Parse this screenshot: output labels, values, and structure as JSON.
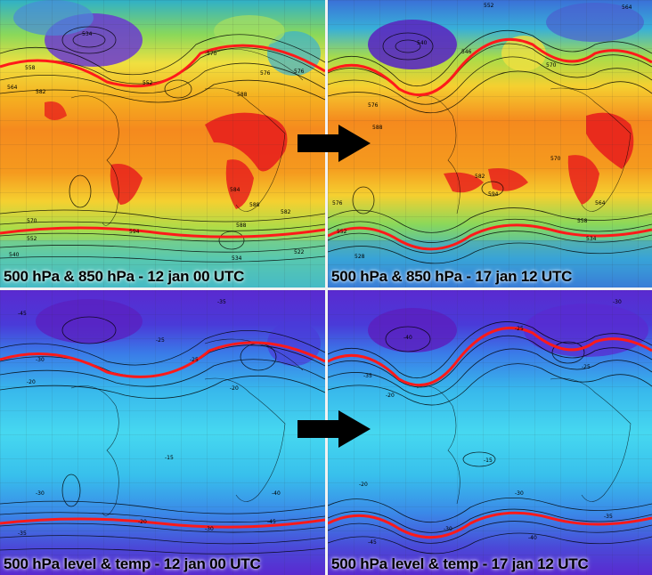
{
  "panels": [
    {
      "id": "tl",
      "caption": "500 hPa & 850 hPa - 12 jan 00 UTC",
      "product": "850 hPa temp + 500 hPa height"
    },
    {
      "id": "tr",
      "caption": "500 hPa & 850 hPa - 17 jan 12 UTC",
      "product": "850 hPa temp + 500 hPa height"
    },
    {
      "id": "bl",
      "caption": "500 hPa level & temp - 12 jan 00 UTC",
      "product": "500 hPa temp + height"
    },
    {
      "id": "br",
      "caption": "500 hPa level & temp - 17 jan 12 UTC",
      "product": "500 hPa temp + height"
    }
  ],
  "arrows": [
    {
      "id": "top-arrow",
      "icon": "right-arrow-icon",
      "color": "#000000"
    },
    {
      "id": "bottom-arrow",
      "icon": "right-arrow-icon",
      "color": "#000000"
    }
  ],
  "contour_labels": {
    "tl": [
      "558",
      "534",
      "552",
      "570",
      "576",
      "564",
      "582",
      "588",
      "576",
      "584",
      "588",
      "594",
      "582",
      "570",
      "588",
      "552",
      "534",
      "522",
      "540"
    ],
    "tr": [
      "576",
      "540",
      "546",
      "552",
      "564",
      "570",
      "588",
      "582",
      "594",
      "570",
      "564",
      "558",
      "576",
      "552",
      "534",
      "528"
    ],
    "bl": [
      "-45",
      "-30",
      "-25",
      "-35",
      "-20",
      "-25",
      "-15",
      "-20",
      "-30",
      "-40",
      "-35",
      "-45",
      "-30",
      "-20"
    ],
    "br": [
      "-40",
      "-35",
      "-25",
      "-30",
      "-20",
      "-25",
      "-15",
      "-20",
      "-30",
      "-35",
      "-40",
      "-45",
      "-30"
    ]
  },
  "colors": {
    "jet_line": "#ff1a1a",
    "warm_core": "#e8201c",
    "warm": "#f58a1e",
    "mid": "#f5c21e",
    "cool": "#6ad04a",
    "cold": "#2fb0c8",
    "very_cold": "#4a3ab8",
    "upper_cold": "#6a2ad0",
    "upper_cool": "#3a7ae8",
    "upper_mid": "#38b8ec",
    "upper_warm": "#46d8f0",
    "caption_text": "#000000"
  }
}
